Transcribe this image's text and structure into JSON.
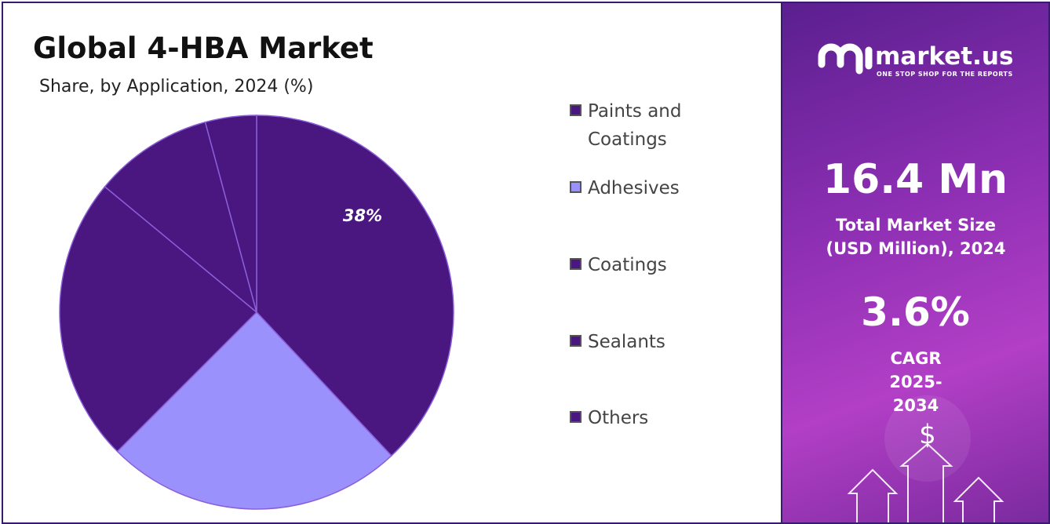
{
  "chart_data": {
    "type": "pie",
    "title": "Global 4-HBA Market",
    "subtitle": "Share, by Application, 2024 (%)",
    "categories": [
      "Paints and Coatings",
      "Adhesives",
      "Coatings",
      "Sealants",
      "Others"
    ],
    "values": [
      38,
      24.5,
      23.5,
      9.8,
      4.2
    ],
    "value_labels": [
      "38%",
      null,
      null,
      null,
      null
    ],
    "colors": [
      "#4a1680",
      "#9a91fc",
      "#4a1680",
      "#4a1680",
      "#4a1680"
    ]
  },
  "side_panel": {
    "brand": "market.us",
    "tagline": "ONE STOP SHOP FOR THE REPORTS",
    "market_size": "16.4 Mn",
    "market_size_label": "Total Market Size (USD Million), 2024",
    "cagr": "3.6%",
    "cagr_label": "CAGR 2025-2034"
  }
}
